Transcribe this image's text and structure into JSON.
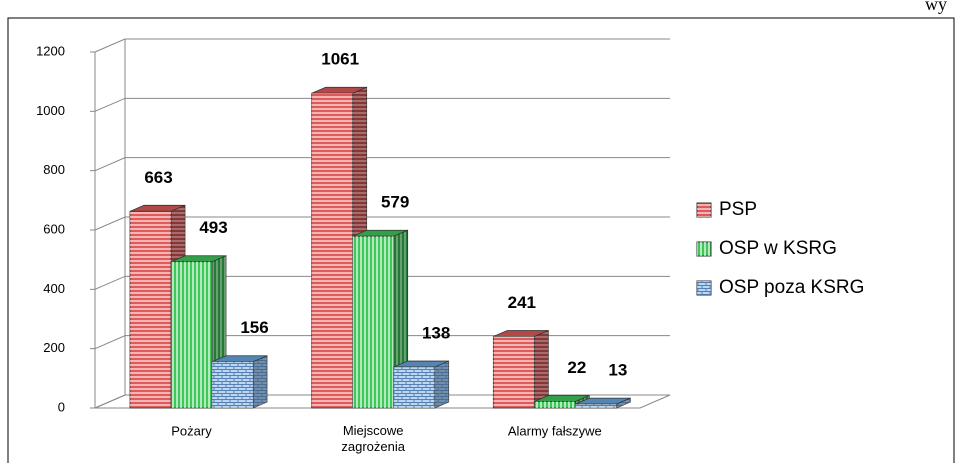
{
  "page_fragment": "wy",
  "chart_data": {
    "type": "bar3d",
    "categories": [
      "Pożary",
      "Miejscowe zagrożenia",
      "Alarmy fałszywe"
    ],
    "series": [
      {
        "name": "PSP",
        "color": "#e05a5a",
        "values": [
          663,
          1061,
          241
        ]
      },
      {
        "name": "OSP w KSRG",
        "color": "#3fc85a",
        "values": [
          493,
          579,
          22
        ]
      },
      {
        "name": "OSP poza KSRG",
        "color": "#6aa8e0",
        "values": [
          156,
          138,
          13
        ]
      }
    ],
    "ylim": [
      0,
      1200
    ],
    "yticks": [
      0,
      200,
      400,
      600,
      800,
      1000,
      1200
    ],
    "grid": true,
    "legend": "right"
  }
}
